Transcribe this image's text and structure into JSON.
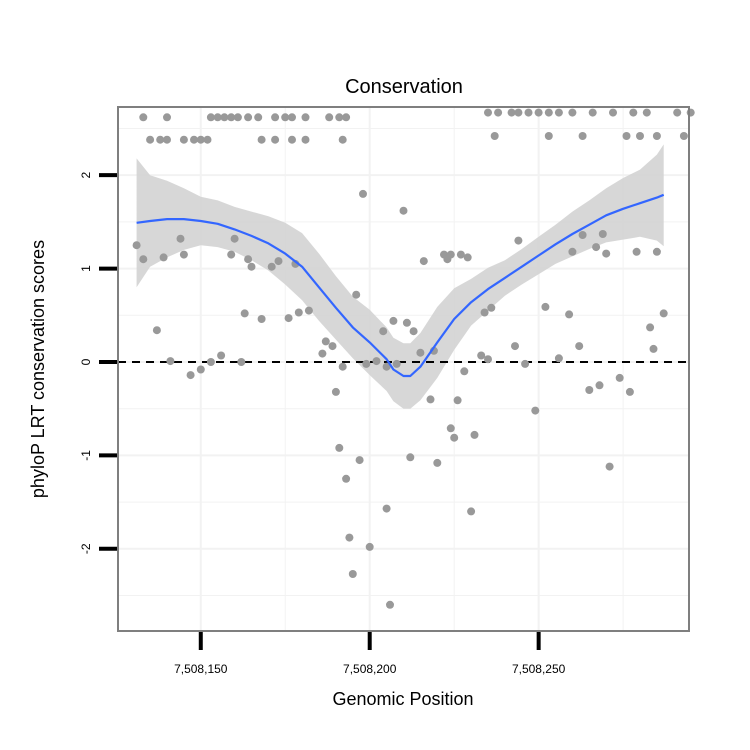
{
  "chart_data": {
    "type": "scatter",
    "title": "Conservation",
    "xlabel": "Genomic Position",
    "ylabel": "phyloP LRT conservation scores",
    "xlim": [
      7508125.5,
      7508294.5
    ],
    "ylim": [
      -2.88,
      2.73
    ],
    "x_ticks": [
      {
        "value": 7508150,
        "label": "7,508,150"
      },
      {
        "value": 7508200,
        "label": "7,508,200"
      },
      {
        "value": 7508250,
        "label": "7,508,250"
      }
    ],
    "y_ticks": [
      {
        "value": -2,
        "label": "-2"
      },
      {
        "value": -1,
        "label": "-1"
      },
      {
        "value": 0,
        "label": "0"
      },
      {
        "value": 1,
        "label": "1"
      },
      {
        "value": 2,
        "label": "2"
      }
    ],
    "reference_line": {
      "y": 0,
      "style": "dashed",
      "color": "#000000"
    },
    "grid": true,
    "colors": {
      "points": "#999999",
      "smooth_line": "#3366FF",
      "ribbon": "#D3D3D3",
      "panel_border": "#7F7F7F",
      "grid": "#F2F2F2"
    },
    "series": [
      {
        "type": "scatter",
        "points": [
          [
            7508133,
            2.62
          ],
          [
            7508140,
            2.62
          ],
          [
            7508153,
            2.62
          ],
          [
            7508155,
            2.62
          ],
          [
            7508157,
            2.62
          ],
          [
            7508159,
            2.62
          ],
          [
            7508161,
            2.62
          ],
          [
            7508164,
            2.62
          ],
          [
            7508167,
            2.62
          ],
          [
            7508172,
            2.62
          ],
          [
            7508175,
            2.62
          ],
          [
            7508177,
            2.62
          ],
          [
            7508181,
            2.62
          ],
          [
            7508188,
            2.62
          ],
          [
            7508191,
            2.62
          ],
          [
            7508193,
            2.62
          ],
          [
            7508135,
            2.38
          ],
          [
            7508138,
            2.38
          ],
          [
            7508140,
            2.38
          ],
          [
            7508145,
            2.38
          ],
          [
            7508148,
            2.38
          ],
          [
            7508150,
            2.38
          ],
          [
            7508152,
            2.38
          ],
          [
            7508168,
            2.38
          ],
          [
            7508172,
            2.38
          ],
          [
            7508177,
            2.38
          ],
          [
            7508181,
            2.38
          ],
          [
            7508192,
            2.38
          ],
          [
            7508235,
            2.67
          ],
          [
            7508238,
            2.67
          ],
          [
            7508242,
            2.67
          ],
          [
            7508244,
            2.67
          ],
          [
            7508247,
            2.67
          ],
          [
            7508250,
            2.67
          ],
          [
            7508253,
            2.67
          ],
          [
            7508256,
            2.67
          ],
          [
            7508260,
            2.67
          ],
          [
            7508266,
            2.67
          ],
          [
            7508272,
            2.67
          ],
          [
            7508278,
            2.67
          ],
          [
            7508282,
            2.67
          ],
          [
            7508291,
            2.67
          ],
          [
            7508295,
            2.67
          ],
          [
            7508237,
            2.42
          ],
          [
            7508253,
            2.42
          ],
          [
            7508263,
            2.42
          ],
          [
            7508276,
            2.42
          ],
          [
            7508280,
            2.42
          ],
          [
            7508285,
            2.42
          ],
          [
            7508293,
            2.42
          ],
          [
            7508131,
            1.25
          ],
          [
            7508133,
            1.1
          ],
          [
            7508137,
            0.34
          ],
          [
            7508139,
            1.12
          ],
          [
            7508141,
            0.01
          ],
          [
            7508144,
            1.32
          ],
          [
            7508145,
            1.15
          ],
          [
            7508147,
            -0.14
          ],
          [
            7508150,
            -0.08
          ],
          [
            7508153,
            0.0
          ],
          [
            7508156,
            0.07
          ],
          [
            7508159,
            1.15
          ],
          [
            7508160,
            1.32
          ],
          [
            7508162,
            0.0
          ],
          [
            7508163,
            0.52
          ],
          [
            7508164,
            1.1
          ],
          [
            7508165,
            1.02
          ],
          [
            7508168,
            0.46
          ],
          [
            7508171,
            1.02
          ],
          [
            7508173,
            1.08
          ],
          [
            7508176,
            0.47
          ],
          [
            7508178,
            1.05
          ],
          [
            7508179,
            0.53
          ],
          [
            7508182,
            0.55
          ],
          [
            7508186,
            0.09
          ],
          [
            7508187,
            0.22
          ],
          [
            7508189,
            0.17
          ],
          [
            7508190,
            -0.32
          ],
          [
            7508191,
            -0.92
          ],
          [
            7508192,
            -0.05
          ],
          [
            7508193,
            -1.25
          ],
          [
            7508194,
            -1.88
          ],
          [
            7508195,
            -2.27
          ],
          [
            7508196,
            0.72
          ],
          [
            7508197,
            -1.05
          ],
          [
            7508198,
            1.8
          ],
          [
            7508199,
            -0.02
          ],
          [
            7508200,
            -1.98
          ],
          [
            7508202,
            0.01
          ],
          [
            7508204,
            0.33
          ],
          [
            7508205,
            -0.05
          ],
          [
            7508205,
            -1.57
          ],
          [
            7508206,
            -2.6
          ],
          [
            7508207,
            0.44
          ],
          [
            7508208,
            -0.02
          ],
          [
            7508210,
            1.62
          ],
          [
            7508211,
            0.42
          ],
          [
            7508212,
            -1.02
          ],
          [
            7508213,
            0.33
          ],
          [
            7508215,
            0.1
          ],
          [
            7508216,
            1.08
          ],
          [
            7508218,
            -0.4
          ],
          [
            7508219,
            0.12
          ],
          [
            7508220,
            -1.08
          ],
          [
            7508222,
            1.15
          ],
          [
            7508223,
            1.1
          ],
          [
            7508224,
            -0.71
          ],
          [
            7508224,
            1.15
          ],
          [
            7508225,
            -0.81
          ],
          [
            7508226,
            -0.41
          ],
          [
            7508227,
            1.15
          ],
          [
            7508228,
            -0.1
          ],
          [
            7508229,
            1.12
          ],
          [
            7508230,
            -1.6
          ],
          [
            7508231,
            -0.78
          ],
          [
            7508233,
            0.07
          ],
          [
            7508234,
            0.53
          ],
          [
            7508235,
            0.03
          ],
          [
            7508236,
            0.58
          ],
          [
            7508243,
            0.17
          ],
          [
            7508244,
            1.3
          ],
          [
            7508246,
            -0.02
          ],
          [
            7508249,
            -0.52
          ],
          [
            7508252,
            0.59
          ],
          [
            7508256,
            0.04
          ],
          [
            7508259,
            0.51
          ],
          [
            7508260,
            1.18
          ],
          [
            7508262,
            0.17
          ],
          [
            7508263,
            1.36
          ],
          [
            7508265,
            -0.3
          ],
          [
            7508267,
            1.23
          ],
          [
            7508268,
            -0.25
          ],
          [
            7508269,
            1.37
          ],
          [
            7508270,
            1.16
          ],
          [
            7508271,
            -1.12
          ],
          [
            7508274,
            -0.17
          ],
          [
            7508277,
            -0.32
          ],
          [
            7508279,
            1.18
          ],
          [
            7508283,
            0.37
          ],
          [
            7508284,
            0.14
          ],
          [
            7508285,
            1.18
          ],
          [
            7508287,
            0.52
          ]
        ]
      },
      {
        "type": "line",
        "x": [
          7508131,
          7508135,
          7508140,
          7508145,
          7508150,
          7508155,
          7508160,
          7508165,
          7508170,
          7508175,
          7508180,
          7508185,
          7508190,
          7508195,
          7508200,
          7508205,
          7508207,
          7508210,
          7508212,
          7508215,
          7508220,
          7508225,
          7508230,
          7508235,
          7508240,
          7508245,
          7508250,
          7508255,
          7508260,
          7508265,
          7508270,
          7508275,
          7508280,
          7508285,
          7508287
        ],
        "y": [
          1.49,
          1.51,
          1.53,
          1.53,
          1.51,
          1.48,
          1.42,
          1.35,
          1.27,
          1.16,
          1.02,
          0.8,
          0.58,
          0.37,
          0.21,
          0.03,
          -0.08,
          -0.15,
          -0.15,
          -0.05,
          0.21,
          0.46,
          0.64,
          0.78,
          0.9,
          1.02,
          1.14,
          1.26,
          1.37,
          1.47,
          1.57,
          1.64,
          1.7,
          1.76,
          1.79
        ]
      },
      {
        "type": "band",
        "x": [
          7508131,
          7508135,
          7508140,
          7508145,
          7508150,
          7508155,
          7508160,
          7508165,
          7508170,
          7508175,
          7508180,
          7508185,
          7508190,
          7508195,
          7508200,
          7508205,
          7508207,
          7508210,
          7508212,
          7508215,
          7508220,
          7508225,
          7508230,
          7508235,
          7508240,
          7508245,
          7508250,
          7508255,
          7508260,
          7508265,
          7508270,
          7508275,
          7508280,
          7508285,
          7508287
        ],
        "lower": [
          0.8,
          1.02,
          1.12,
          1.2,
          1.25,
          1.23,
          1.18,
          1.09,
          0.98,
          0.83,
          0.66,
          0.44,
          0.24,
          0.04,
          -0.14,
          -0.31,
          -0.42,
          -0.5,
          -0.5,
          -0.41,
          -0.17,
          0.13,
          0.39,
          0.55,
          0.71,
          0.83,
          0.94,
          1.05,
          1.13,
          1.21,
          1.28,
          1.31,
          1.34,
          1.3,
          1.24
        ],
        "upper": [
          2.18,
          2.0,
          1.94,
          1.86,
          1.77,
          1.73,
          1.66,
          1.61,
          1.56,
          1.49,
          1.38,
          1.16,
          0.92,
          0.7,
          0.56,
          0.37,
          0.26,
          0.2,
          0.2,
          0.31,
          0.59,
          0.79,
          0.89,
          1.01,
          1.09,
          1.21,
          1.34,
          1.47,
          1.61,
          1.73,
          1.86,
          1.97,
          2.06,
          2.22,
          2.33
        ]
      }
    ]
  }
}
